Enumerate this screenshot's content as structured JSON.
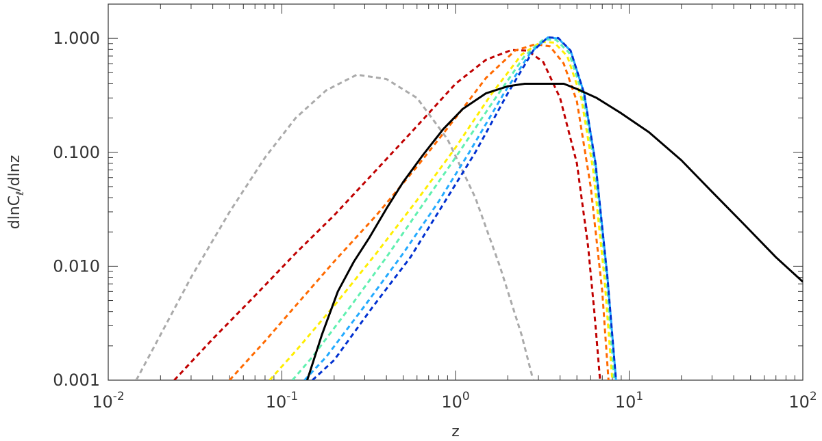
{
  "chart_data": {
    "type": "line",
    "xscale": "log",
    "yscale": "log",
    "xlim": [
      0.01,
      100
    ],
    "ylim": [
      0.001,
      2
    ],
    "xlabel": "z",
    "ylabel": "dlnCℓ/dlnz",
    "grid": false,
    "x_ticks": [
      {
        "value": 0.01,
        "base": "10",
        "exp": "-2"
      },
      {
        "value": 0.1,
        "base": "10",
        "exp": "-1"
      },
      {
        "value": 1,
        "base": "10",
        "exp": "0"
      },
      {
        "value": 10,
        "base": "10",
        "exp": "1"
      },
      {
        "value": 100,
        "base": "10",
        "exp": "2"
      }
    ],
    "y_ticks": [
      {
        "value": 0.001,
        "label": "0.001"
      },
      {
        "value": 0.01,
        "label": "0.010"
      },
      {
        "value": 0.1,
        "label": "0.100"
      },
      {
        "value": 1,
        "label": "1.000"
      }
    ],
    "series": [
      {
        "color": "#aaaaaa",
        "dash": true,
        "x": [
          0.0145,
          0.02,
          0.03,
          0.05,
          0.08,
          0.12,
          0.18,
          0.27,
          0.4,
          0.6,
          0.9,
          1.3,
          1.8,
          2.4,
          2.8
        ],
        "y": [
          0.001,
          0.0025,
          0.008,
          0.03,
          0.09,
          0.2,
          0.35,
          0.48,
          0.44,
          0.3,
          0.13,
          0.04,
          0.01,
          0.0025,
          0.001
        ]
      },
      {
        "color": "#c00000",
        "dash": true,
        "x": [
          0.024,
          0.04,
          0.07,
          0.12,
          0.2,
          0.35,
          0.6,
          1.0,
          1.5,
          2.1,
          2.6,
          3.2,
          4.0,
          5.0,
          5.8,
          6.3,
          6.8
        ],
        "y": [
          0.001,
          0.0023,
          0.0055,
          0.013,
          0.028,
          0.07,
          0.17,
          0.4,
          0.65,
          0.79,
          0.78,
          0.62,
          0.3,
          0.08,
          0.015,
          0.004,
          0.001
        ]
      },
      {
        "color": "#ff6a00",
        "dash": true,
        "x": [
          0.05,
          0.08,
          0.12,
          0.2,
          0.35,
          0.6,
          1.0,
          1.5,
          2.2,
          2.9,
          3.5,
          4.2,
          5.0,
          6.0,
          7.0,
          7.6
        ],
        "y": [
          0.001,
          0.0022,
          0.0045,
          0.011,
          0.028,
          0.075,
          0.2,
          0.45,
          0.78,
          0.89,
          0.85,
          0.6,
          0.28,
          0.05,
          0.006,
          0.001
        ]
      },
      {
        "color": "#ffee00",
        "dash": true,
        "x": [
          0.085,
          0.12,
          0.2,
          0.35,
          0.6,
          1.0,
          1.6,
          2.4,
          3.1,
          3.7,
          4.4,
          5.3,
          6.2,
          7.2,
          8.0
        ],
        "y": [
          0.001,
          0.0018,
          0.0045,
          0.013,
          0.038,
          0.11,
          0.32,
          0.72,
          0.93,
          0.92,
          0.7,
          0.3,
          0.07,
          0.008,
          0.001
        ]
      },
      {
        "color": "#60f0b0",
        "dash": true,
        "x": [
          0.115,
          0.15,
          0.25,
          0.4,
          0.65,
          1.0,
          1.7,
          2.5,
          3.2,
          3.8,
          4.5,
          5.4,
          6.3,
          7.4,
          8.2
        ],
        "y": [
          0.001,
          0.0016,
          0.0045,
          0.012,
          0.035,
          0.09,
          0.3,
          0.7,
          0.98,
          0.97,
          0.75,
          0.32,
          0.08,
          0.008,
          0.001
        ]
      },
      {
        "color": "#22aaff",
        "dash": true,
        "x": [
          0.135,
          0.18,
          0.3,
          0.5,
          0.8,
          1.2,
          1.9,
          2.7,
          3.4,
          3.9,
          4.6,
          5.5,
          6.4,
          7.5,
          8.4
        ],
        "y": [
          0.001,
          0.0016,
          0.0045,
          0.013,
          0.037,
          0.1,
          0.33,
          0.75,
          1.02,
          1.0,
          0.78,
          0.33,
          0.08,
          0.008,
          0.001
        ]
      },
      {
        "color": "#0030d0",
        "dash": true,
        "x": [
          0.15,
          0.2,
          0.33,
          0.55,
          0.85,
          1.3,
          2.0,
          2.8,
          3.4,
          3.9,
          4.6,
          5.5,
          6.4,
          7.5,
          8.4
        ],
        "y": [
          0.001,
          0.0015,
          0.0043,
          0.012,
          0.035,
          0.1,
          0.33,
          0.78,
          1.02,
          1.01,
          0.78,
          0.33,
          0.08,
          0.008,
          0.001
        ]
      },
      {
        "color": "#000000",
        "dash": false,
        "x": [
          0.14,
          0.17,
          0.21,
          0.26,
          0.32,
          0.4,
          0.5,
          0.65,
          0.85,
          1.1,
          1.5,
          2.0,
          2.5,
          3.0,
          3.5,
          4.2,
          5.0,
          6.5,
          9.0,
          13,
          20,
          30,
          45,
          70,
          100
        ],
        "y": [
          0.001,
          0.0025,
          0.006,
          0.011,
          0.018,
          0.032,
          0.055,
          0.095,
          0.16,
          0.24,
          0.33,
          0.38,
          0.4,
          0.4,
          0.4,
          0.4,
          0.36,
          0.3,
          0.22,
          0.15,
          0.085,
          0.045,
          0.024,
          0.012,
          0.0073
        ]
      }
    ]
  }
}
